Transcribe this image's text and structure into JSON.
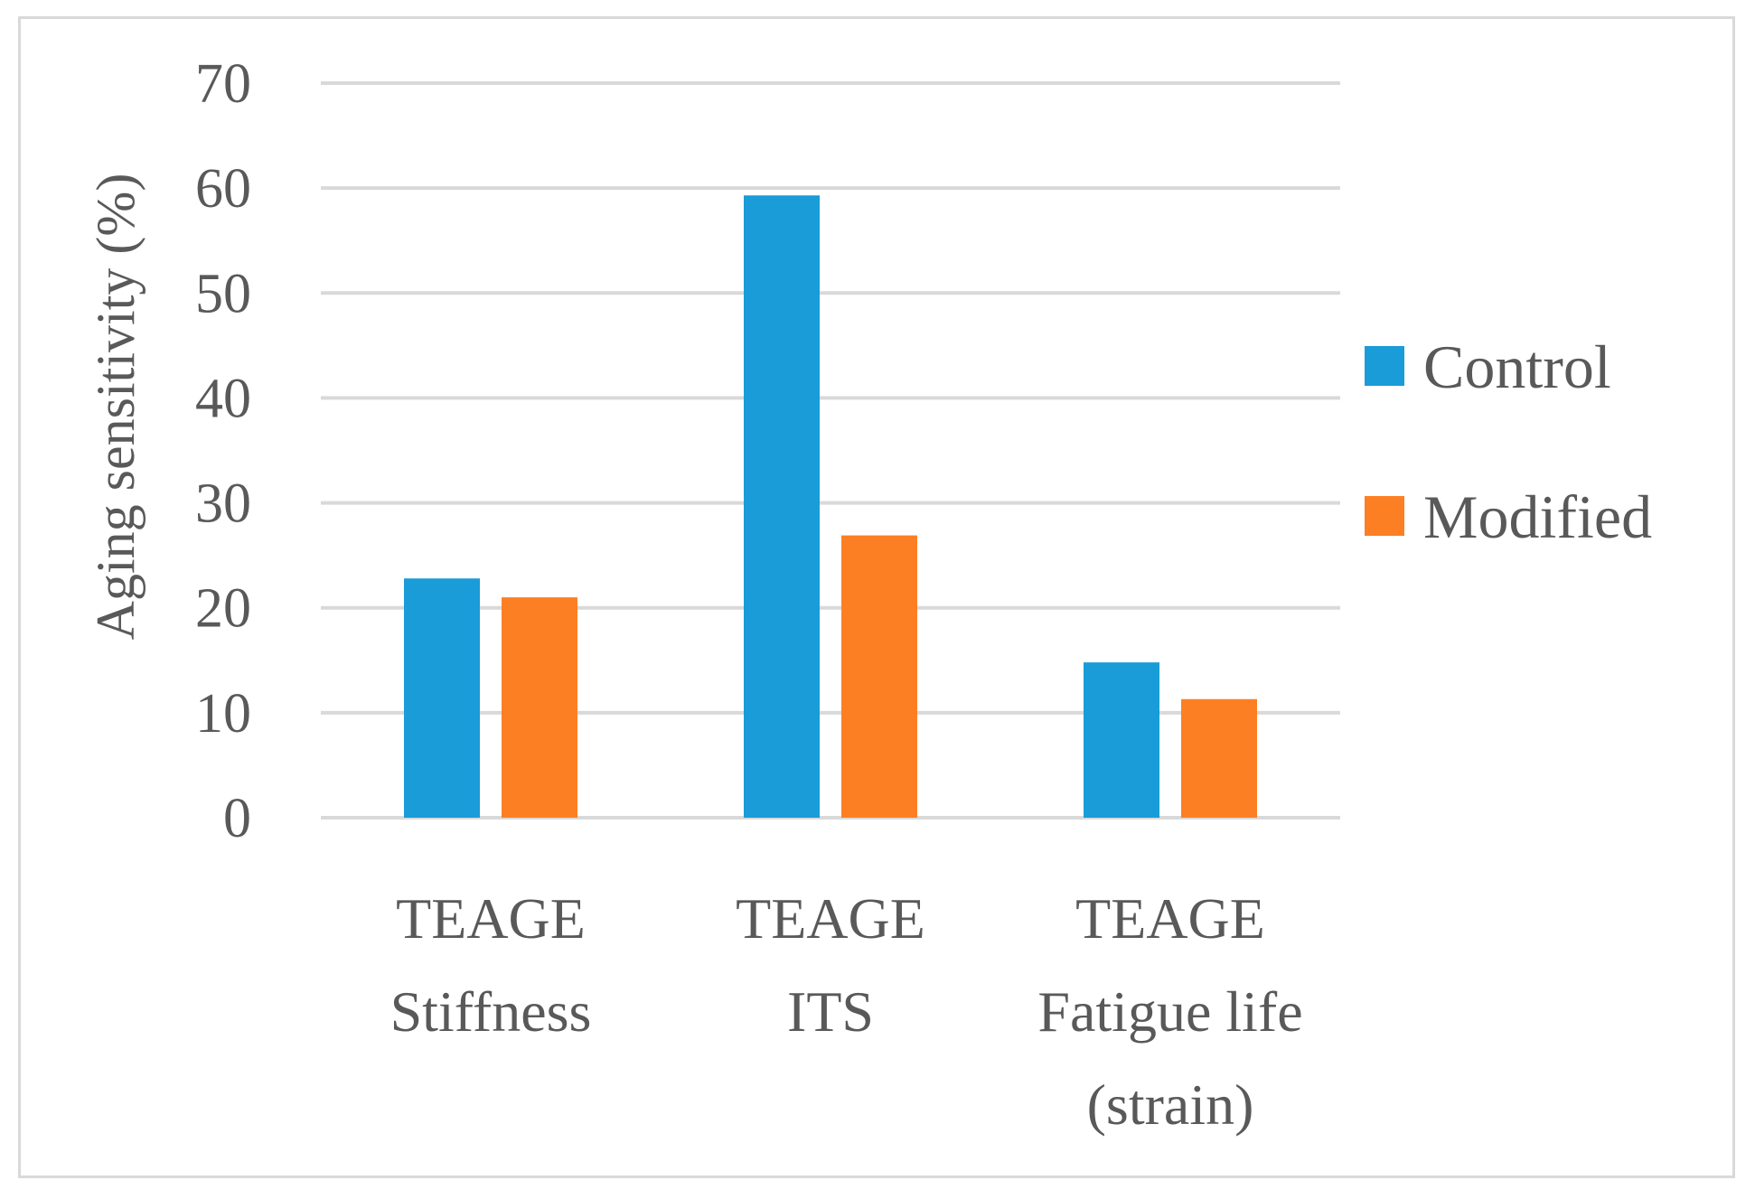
{
  "chart_data": {
    "type": "bar",
    "title": "",
    "ylabel": "Aging sensitivity  (%)",
    "xlabel": "",
    "ylim": [
      0,
      70
    ],
    "yticks": [
      0,
      10,
      20,
      30,
      40,
      50,
      60,
      70
    ],
    "grid": true,
    "legend_position": "right",
    "categories": [
      [
        "TEAGE",
        "Stiffness"
      ],
      [
        "TEAGE",
        "ITS"
      ],
      [
        "TEAGE",
        "Fatigue life",
        "(strain)"
      ]
    ],
    "series": [
      {
        "name": "Control",
        "color": "#1a9cd8",
        "values": [
          22.8,
          59.3,
          14.8
        ]
      },
      {
        "name": "Modified",
        "color": "#fd7f23",
        "values": [
          21,
          26.9,
          11.3
        ]
      }
    ]
  }
}
